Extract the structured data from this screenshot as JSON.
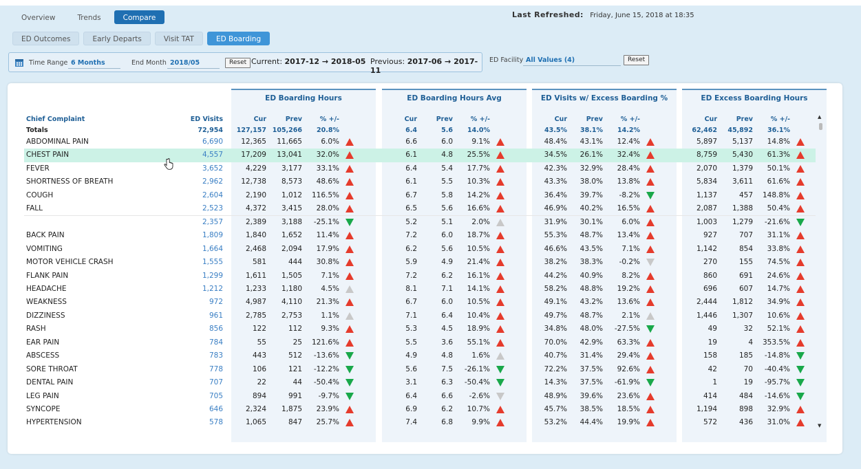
{
  "nav": {
    "top_tabs": [
      {
        "label": "Overview",
        "active": false
      },
      {
        "label": "Trends",
        "active": false
      },
      {
        "label": "Compare",
        "active": true
      }
    ],
    "sub_tabs": [
      {
        "label": "ED Outcomes",
        "active": false
      },
      {
        "label": "Early Departs",
        "active": false
      },
      {
        "label": "Visit TAT",
        "active": false
      },
      {
        "label": "ED Boarding",
        "active": true
      }
    ]
  },
  "refresh": {
    "label": "Last Refreshed:",
    "value": "Friday, June 15, 2018  at 18:35"
  },
  "filters": {
    "icon": "calendar-icon",
    "time_range_label": "Time Range",
    "time_range_value": "6 Months",
    "end_month_label": "End Month",
    "end_month_value": "2018/05",
    "reset_label": "Reset",
    "current_label": "Current:",
    "current_value": "2017-12 → 2018-05",
    "previous_label": "Previous:",
    "previous_value": "2017-06 → 2017-11",
    "facility_label": "ED Facility",
    "facility_value": "All Values (4)",
    "facility_reset_label": "Reset"
  },
  "table": {
    "col_complaint": "Chief Complaint",
    "col_visits": "ED Visits",
    "groups": [
      "ED Boarding Hours",
      "ED Boarding Hours Avg",
      "ED Visits w/ Excess Boarding %",
      "ED Excess Boarding Hours"
    ],
    "sub_cur": "Cur",
    "sub_prev": "Prev",
    "sub_pct": "% +/-",
    "totals": {
      "label": "Totals",
      "visits": "72,954",
      "g": [
        [
          "127,157",
          "105,266",
          "20.8%"
        ],
        [
          "6.4",
          "5.6",
          "14.0%"
        ],
        [
          "43.5%",
          "38.1%",
          "14.2%"
        ],
        [
          "62,462",
          "45,892",
          "36.1%"
        ]
      ]
    },
    "rows": [
      {
        "name": "ABDOMINAL PAIN",
        "visits": "6,690",
        "g": [
          [
            "12,365",
            "11,665",
            "6.0%",
            "up-red"
          ],
          [
            "6.6",
            "6.0",
            "9.1%",
            "up-red"
          ],
          [
            "48.4%",
            "43.1%",
            "12.4%",
            "up-red"
          ],
          [
            "5,897",
            "5,137",
            "14.8%",
            "up-red"
          ]
        ]
      },
      {
        "name": "CHEST PAIN",
        "visits": "4,557",
        "highlight": true,
        "g": [
          [
            "17,209",
            "13,041",
            "32.0%",
            "up-red"
          ],
          [
            "6.1",
            "4.8",
            "25.5%",
            "up-red"
          ],
          [
            "34.5%",
            "26.1%",
            "32.4%",
            "up-red"
          ],
          [
            "8,759",
            "5,430",
            "61.3%",
            "up-red"
          ]
        ]
      },
      {
        "name": "FEVER",
        "visits": "3,652",
        "g": [
          [
            "4,229",
            "3,177",
            "33.1%",
            "up-red"
          ],
          [
            "6.4",
            "5.4",
            "17.7%",
            "up-red"
          ],
          [
            "42.3%",
            "32.9%",
            "28.4%",
            "up-red"
          ],
          [
            "2,070",
            "1,379",
            "50.1%",
            "up-red"
          ]
        ]
      },
      {
        "name": "SHORTNESS OF BREATH",
        "visits": "2,962",
        "g": [
          [
            "12,738",
            "8,573",
            "48.6%",
            "up-red"
          ],
          [
            "6.1",
            "5.5",
            "10.3%",
            "up-red"
          ],
          [
            "43.3%",
            "38.0%",
            "13.8%",
            "up-red"
          ],
          [
            "5,834",
            "3,611",
            "61.6%",
            "up-red"
          ]
        ]
      },
      {
        "name": "COUGH",
        "visits": "2,604",
        "g": [
          [
            "2,190",
            "1,012",
            "116.5%",
            "up-red"
          ],
          [
            "6.7",
            "5.8",
            "14.2%",
            "up-red"
          ],
          [
            "36.4%",
            "39.7%",
            "-8.2%",
            "down-green"
          ],
          [
            "1,137",
            "457",
            "148.8%",
            "up-red"
          ]
        ]
      },
      {
        "name": "FALL",
        "visits": "2,523",
        "g": [
          [
            "4,372",
            "3,415",
            "28.0%",
            "up-red"
          ],
          [
            "6.5",
            "5.6",
            "16.6%",
            "up-red"
          ],
          [
            "46.9%",
            "40.2%",
            "16.5%",
            "up-red"
          ],
          [
            "2,087",
            "1,388",
            "50.4%",
            "up-red"
          ]
        ]
      },
      {
        "name": "",
        "visits": "2,357",
        "g": [
          [
            "2,389",
            "3,188",
            "-25.1%",
            "down-green"
          ],
          [
            "5.2",
            "5.1",
            "2.0%",
            "up-grey"
          ],
          [
            "31.9%",
            "30.1%",
            "6.0%",
            "up-red"
          ],
          [
            "1,003",
            "1,279",
            "-21.6%",
            "down-green"
          ]
        ]
      },
      {
        "name": "BACK PAIN",
        "visits": "1,809",
        "g": [
          [
            "1,840",
            "1,652",
            "11.4%",
            "up-red"
          ],
          [
            "7.2",
            "6.0",
            "18.7%",
            "up-red"
          ],
          [
            "55.3%",
            "48.7%",
            "13.4%",
            "up-red"
          ],
          [
            "927",
            "707",
            "31.1%",
            "up-red"
          ]
        ]
      },
      {
        "name": "VOMITING",
        "visits": "1,664",
        "g": [
          [
            "2,468",
            "2,094",
            "17.9%",
            "up-red"
          ],
          [
            "6.2",
            "5.6",
            "10.5%",
            "up-red"
          ],
          [
            "46.6%",
            "43.5%",
            "7.1%",
            "up-red"
          ],
          [
            "1,142",
            "854",
            "33.8%",
            "up-red"
          ]
        ]
      },
      {
        "name": "MOTOR VEHICLE CRASH",
        "visits": "1,555",
        "g": [
          [
            "581",
            "444",
            "30.8%",
            "up-red"
          ],
          [
            "5.9",
            "4.9",
            "21.4%",
            "up-red"
          ],
          [
            "38.2%",
            "38.3%",
            "-0.2%",
            "down-grey"
          ],
          [
            "270",
            "155",
            "74.5%",
            "up-red"
          ]
        ]
      },
      {
        "name": "FLANK PAIN",
        "visits": "1,299",
        "g": [
          [
            "1,611",
            "1,505",
            "7.1%",
            "up-red"
          ],
          [
            "7.2",
            "6.2",
            "16.1%",
            "up-red"
          ],
          [
            "44.2%",
            "40.9%",
            "8.2%",
            "up-red"
          ],
          [
            "860",
            "691",
            "24.6%",
            "up-red"
          ]
        ]
      },
      {
        "name": "HEADACHE",
        "visits": "1,212",
        "g": [
          [
            "1,233",
            "1,180",
            "4.5%",
            "up-grey"
          ],
          [
            "8.1",
            "7.1",
            "14.1%",
            "up-red"
          ],
          [
            "58.2%",
            "48.8%",
            "19.2%",
            "up-red"
          ],
          [
            "696",
            "607",
            "14.7%",
            "up-red"
          ]
        ]
      },
      {
        "name": "WEAKNESS",
        "visits": "972",
        "g": [
          [
            "4,987",
            "4,110",
            "21.3%",
            "up-red"
          ],
          [
            "6.7",
            "6.0",
            "10.5%",
            "up-red"
          ],
          [
            "49.1%",
            "43.2%",
            "13.6%",
            "up-red"
          ],
          [
            "2,444",
            "1,812",
            "34.9%",
            "up-red"
          ]
        ]
      },
      {
        "name": "DIZZINESS",
        "visits": "961",
        "g": [
          [
            "2,785",
            "2,753",
            "1.1%",
            "up-grey"
          ],
          [
            "7.1",
            "6.4",
            "10.4%",
            "up-red"
          ],
          [
            "49.7%",
            "48.7%",
            "2.1%",
            "up-grey"
          ],
          [
            "1,446",
            "1,307",
            "10.6%",
            "up-red"
          ]
        ]
      },
      {
        "name": "RASH",
        "visits": "856",
        "g": [
          [
            "122",
            "112",
            "9.3%",
            "up-red"
          ],
          [
            "5.3",
            "4.5",
            "18.9%",
            "up-red"
          ],
          [
            "34.8%",
            "48.0%",
            "-27.5%",
            "down-green"
          ],
          [
            "49",
            "32",
            "52.1%",
            "up-red"
          ]
        ]
      },
      {
        "name": "EAR PAIN",
        "visits": "784",
        "g": [
          [
            "55",
            "25",
            "121.6%",
            "up-red"
          ],
          [
            "5.5",
            "3.6",
            "55.1%",
            "up-red"
          ],
          [
            "70.0%",
            "42.9%",
            "63.3%",
            "up-red"
          ],
          [
            "19",
            "4",
            "353.5%",
            "up-red"
          ]
        ]
      },
      {
        "name": "ABSCESS",
        "visits": "783",
        "g": [
          [
            "443",
            "512",
            "-13.6%",
            "down-green"
          ],
          [
            "4.9",
            "4.8",
            "1.6%",
            "up-grey"
          ],
          [
            "40.7%",
            "31.4%",
            "29.4%",
            "up-red"
          ],
          [
            "158",
            "185",
            "-14.8%",
            "down-green"
          ]
        ]
      },
      {
        "name": "SORE THROAT",
        "visits": "778",
        "g": [
          [
            "106",
            "121",
            "-12.2%",
            "down-green"
          ],
          [
            "5.6",
            "7.5",
            "-26.1%",
            "down-green"
          ],
          [
            "72.2%",
            "37.5%",
            "92.6%",
            "up-red"
          ],
          [
            "42",
            "70",
            "-40.4%",
            "down-green"
          ]
        ]
      },
      {
        "name": "DENTAL PAIN",
        "visits": "707",
        "g": [
          [
            "22",
            "44",
            "-50.4%",
            "down-green"
          ],
          [
            "3.1",
            "6.3",
            "-50.4%",
            "down-green"
          ],
          [
            "14.3%",
            "37.5%",
            "-61.9%",
            "down-green"
          ],
          [
            "1",
            "19",
            "-95.7%",
            "down-green"
          ]
        ]
      },
      {
        "name": "LEG PAIN",
        "visits": "705",
        "g": [
          [
            "894",
            "991",
            "-9.7%",
            "down-green"
          ],
          [
            "6.4",
            "6.6",
            "-2.6%",
            "down-grey"
          ],
          [
            "48.9%",
            "39.6%",
            "23.6%",
            "up-red"
          ],
          [
            "414",
            "484",
            "-14.6%",
            "down-green"
          ]
        ]
      },
      {
        "name": "SYNCOPE",
        "visits": "646",
        "g": [
          [
            "2,324",
            "1,875",
            "23.9%",
            "up-red"
          ],
          [
            "6.9",
            "6.2",
            "10.7%",
            "up-red"
          ],
          [
            "45.7%",
            "38.5%",
            "18.5%",
            "up-red"
          ],
          [
            "1,194",
            "898",
            "32.9%",
            "up-red"
          ]
        ]
      },
      {
        "name": "HYPERTENSION",
        "visits": "578",
        "g": [
          [
            "1,065",
            "847",
            "25.7%",
            "up-red"
          ],
          [
            "7.4",
            "6.8",
            "9.9%",
            "up-red"
          ],
          [
            "53.2%",
            "44.4%",
            "19.9%",
            "up-red"
          ],
          [
            "572",
            "436",
            "31.0%",
            "up-red"
          ]
        ]
      }
    ]
  },
  "colors": {
    "accent": "#1f6fb2",
    "up": "#e53b2c",
    "down": "#19a84a",
    "neutral": "#c8c8c8",
    "highlight": "#ccf2e6"
  }
}
